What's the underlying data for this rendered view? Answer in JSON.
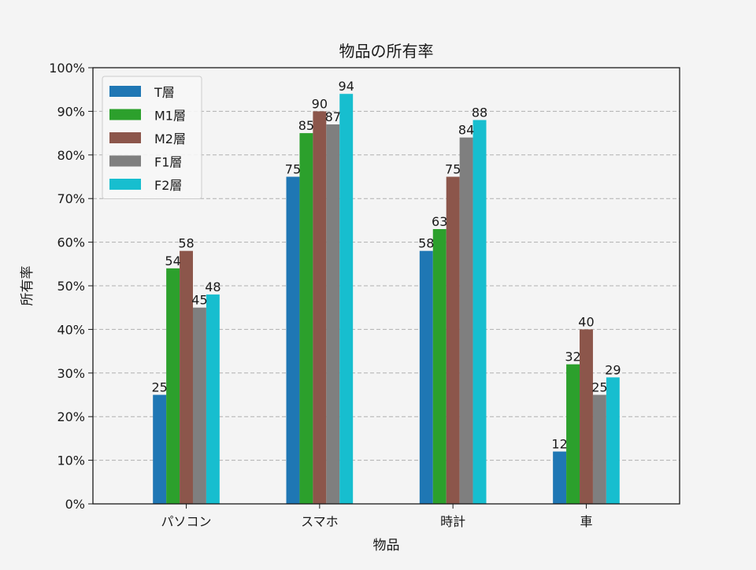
{
  "chart_data": {
    "type": "bar",
    "title": "物品の所有率",
    "xlabel": "物品",
    "ylabel": "所有率",
    "categories": [
      "パソコン",
      "スマホ",
      "時計",
      "車"
    ],
    "series": [
      {
        "name": "T層",
        "color": "#1f77b4",
        "values": [
          25,
          75,
          58,
          12
        ]
      },
      {
        "name": "M1層",
        "color": "#2ca02c",
        "values": [
          54,
          85,
          63,
          32
        ]
      },
      {
        "name": "M2層",
        "color": "#8c564b",
        "values": [
          58,
          90,
          75,
          40
        ]
      },
      {
        "name": "F1層",
        "color": "#7f7f7f",
        "values": [
          45,
          87,
          84,
          25
        ]
      },
      {
        "name": "F2層",
        "color": "#17becf",
        "values": [
          48,
          94,
          88,
          29
        ]
      }
    ],
    "ylim": [
      0,
      100
    ],
    "yticks": [
      "0%",
      "10%",
      "20%",
      "30%",
      "40%",
      "50%",
      "60%",
      "70%",
      "80%",
      "90%",
      "100%"
    ],
    "grid": "y-dashed",
    "legend_position": "top-left"
  }
}
